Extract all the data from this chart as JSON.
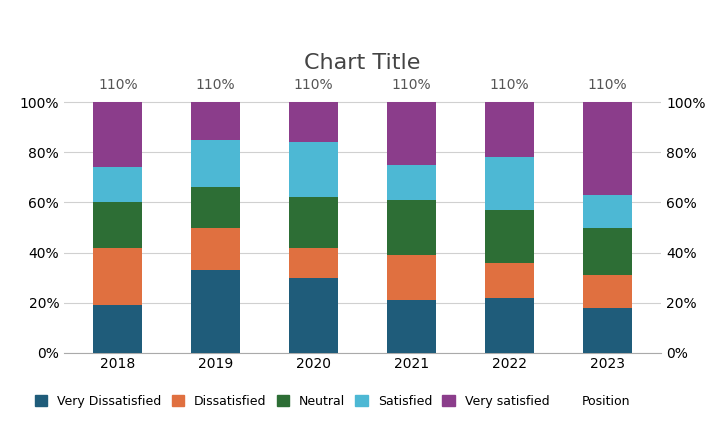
{
  "title": "Chart Title",
  "categories": [
    "2018",
    "2019",
    "2020",
    "2021",
    "2022",
    "2023"
  ],
  "series_order": [
    "Very Dissatisfied",
    "Dissatisfied",
    "Neutral",
    "Satisfied",
    "Very satisfied"
  ],
  "series": {
    "Very Dissatisfied": [
      0.19,
      0.33,
      0.3,
      0.21,
      0.22,
      0.18
    ],
    "Dissatisfied": [
      0.23,
      0.17,
      0.12,
      0.18,
      0.14,
      0.13
    ],
    "Neutral": [
      0.18,
      0.16,
      0.2,
      0.22,
      0.21,
      0.19
    ],
    "Satisfied": [
      0.14,
      0.19,
      0.22,
      0.14,
      0.21,
      0.13
    ],
    "Very satisfied": [
      0.26,
      0.15,
      0.16,
      0.25,
      0.22,
      0.37
    ]
  },
  "colors": {
    "Very Dissatisfied": "#1f5c7a",
    "Dissatisfied": "#e07040",
    "Neutral": "#2d6e35",
    "Satisfied": "#4db8d4",
    "Very satisfied": "#8b3d8b"
  },
  "totals_label": "110%",
  "ylim": [
    0,
    1.1
  ],
  "yticks": [
    0,
    0.2,
    0.4,
    0.6,
    0.8,
    1.0
  ],
  "ytick_labels": [
    "0%",
    "20%",
    "40%",
    "60%",
    "80%",
    "100%"
  ],
  "bar_width": 0.5,
  "background_color": "#ffffff",
  "grid_color": "#d0d0d0",
  "title_fontsize": 16,
  "axis_fontsize": 10,
  "totals_fontsize": 10,
  "legend_extra": "Position",
  "legend_fontsize": 9
}
